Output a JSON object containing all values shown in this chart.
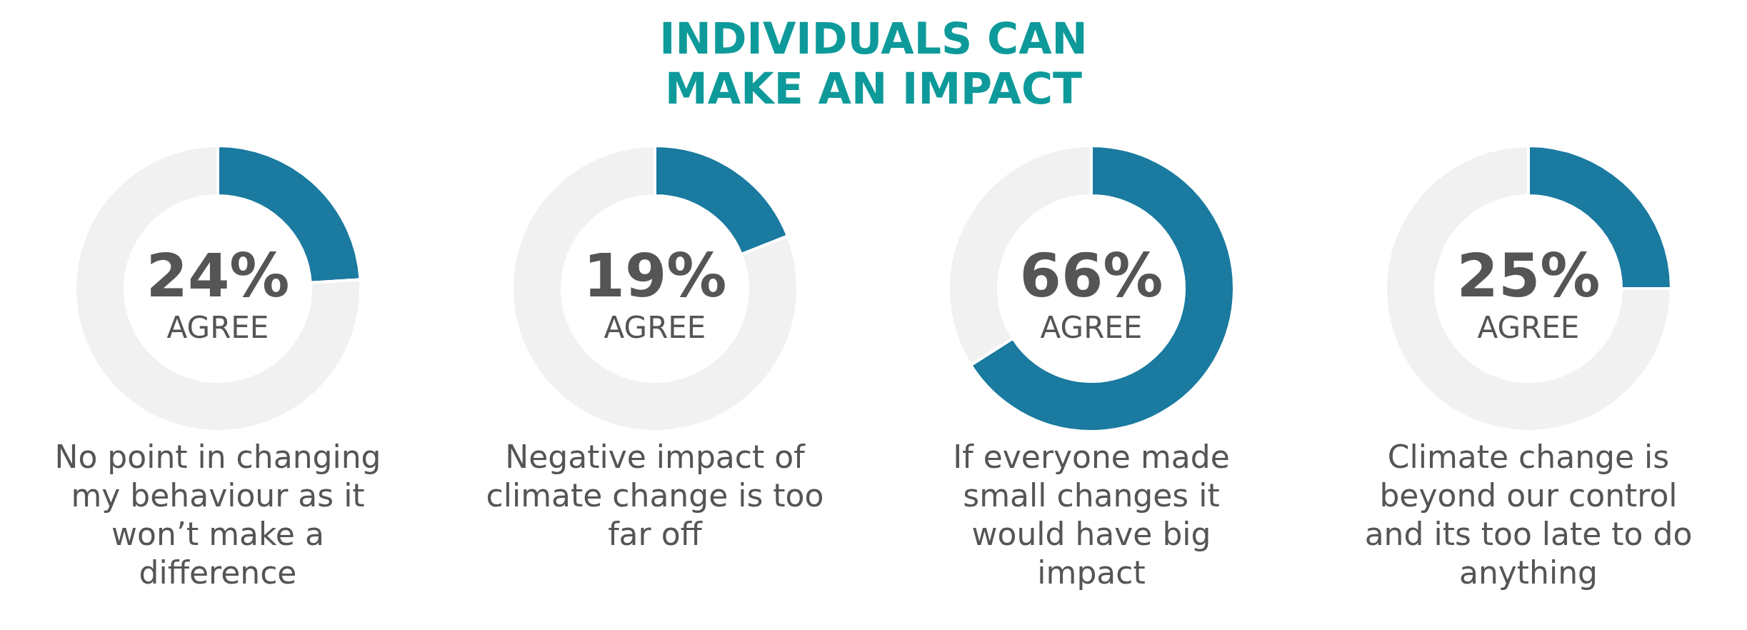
{
  "chart_data": [
    {
      "type": "other",
      "title": "INDIVIDUALS CAN MAKE AN IMPACT"
    },
    {
      "type": "donut",
      "categories": [
        "AGREE",
        null
      ],
      "values": [
        24,
        76
      ],
      "colors": [
        "#1a7aa0",
        "#f1f1f1"
      ],
      "value_labels": [
        "24%",
        null
      ],
      "annotations": [
        "No point in changing my behaviour as it won’t make a difference"
      ]
    },
    {
      "type": "donut",
      "categories": [
        "AGREE",
        null
      ],
      "values": [
        19,
        81
      ],
      "colors": [
        "#1a7aa0",
        "#f1f1f1"
      ],
      "value_labels": [
        "19%",
        null
      ],
      "annotations": [
        "Negative impact of climate change is too far off"
      ]
    },
    {
      "type": "donut",
      "categories": [
        "AGREE",
        null
      ],
      "values": [
        66,
        34
      ],
      "colors": [
        "#1a7aa0",
        "#f1f1f1"
      ],
      "value_labels": [
        "66%",
        null
      ],
      "annotations": [
        "If everyone made small changes it would have big impact"
      ]
    },
    {
      "type": "donut",
      "categories": [
        "AGREE",
        null
      ],
      "values": [
        25,
        75
      ],
      "colors": [
        "#1a7aa0",
        "#f1f1f1"
      ],
      "value_labels": [
        "25%",
        null
      ],
      "annotations": [
        "Climate change is beyond our control and its too late to do anything"
      ]
    }
  ]
}
